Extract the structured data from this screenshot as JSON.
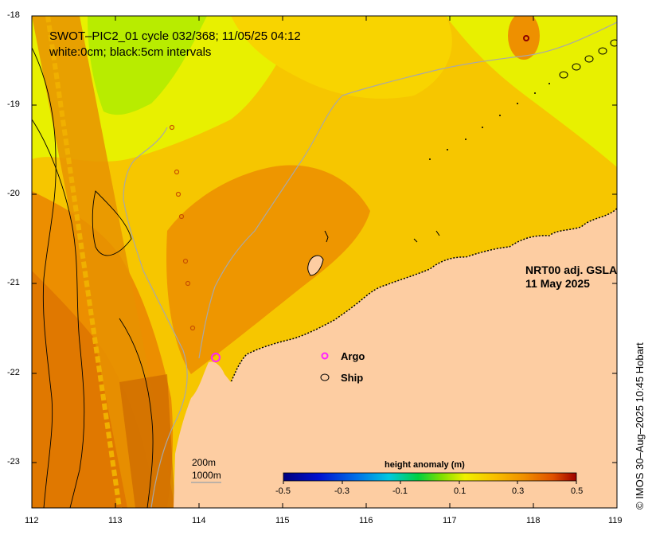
{
  "title": {
    "line1": "SWOT–PIC2_01 cycle 032/368; 11/05/25 04:12",
    "line2": "white:0cm; black:5cm intervals"
  },
  "product": {
    "line1": "NRT00 adj. GSLA",
    "line2": "11 May 2025"
  },
  "legend": {
    "argo_label": "Argo",
    "ship_label": "Ship",
    "argo_color": "#ff22ff",
    "ship_color": "#000000"
  },
  "scale": {
    "depth1": "200m",
    "depth2": "1000m"
  },
  "colorbar": {
    "title": "height anomaly (m)",
    "ticks": [
      "-0.5",
      "-0.3",
      "-0.1",
      "0.1",
      "0.3",
      "0.5"
    ],
    "range": [
      -0.5,
      0.5
    ]
  },
  "axes": {
    "lat_ticks": [
      "-18",
      "-19",
      "-20",
      "-21",
      "-22",
      "-23"
    ],
    "lon_ticks": [
      "112",
      "113",
      "114",
      "115",
      "116",
      "117",
      "118",
      "119"
    ]
  },
  "colors": {
    "land": "#fdcda2",
    "ocean_mid": "#f5c200",
    "ocean_high": "#ee9400",
    "ocean_low": "#ddf000",
    "bathymetry": "#a8a8a8"
  },
  "credit": "© IMOS 30–Aug–2025 10:45 Hobart"
}
